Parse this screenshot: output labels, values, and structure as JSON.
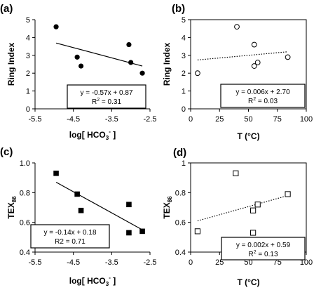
{
  "colors": {
    "ink": "#000000",
    "background": "#ffffff"
  },
  "chart_data": [
    {
      "panel": "(a)",
      "type": "scatter",
      "xlabel": "log[ HCO3- ]",
      "ylabel": "Ring Index",
      "xlim": [
        -5.5,
        -2.5
      ],
      "ylim": [
        0,
        5
      ],
      "xticks": [
        -5.5,
        -4.5,
        -3.5,
        -2.5
      ],
      "xtick_labels": [
        "-5.5",
        "-4.5",
        "-3.5",
        "-2.5"
      ],
      "yticks": [
        0,
        1,
        2,
        3,
        4,
        5
      ],
      "ytick_labels": [
        "0",
        "1",
        "2",
        "3",
        "4",
        "5"
      ],
      "marker": "filled-circle",
      "frame": "open",
      "trendline_style": "solid",
      "points": [
        [
          -4.95,
          4.6
        ],
        [
          -4.4,
          2.9
        ],
        [
          -4.3,
          2.4
        ],
        [
          -3.05,
          3.6
        ],
        [
          -3.0,
          2.6
        ],
        [
          -2.7,
          2.0
        ]
      ],
      "trendline": {
        "x": [
          -4.95,
          -2.7
        ],
        "y": [
          3.69,
          2.4
        ]
      },
      "equation": "y = -0.57x + 0.87",
      "r2": "R2 = 0.31"
    },
    {
      "panel": "(b)",
      "type": "scatter",
      "xlabel": "T (°C)",
      "ylabel": "Ring Index",
      "xlim": [
        0,
        100
      ],
      "ylim": [
        0,
        5
      ],
      "xticks": [
        0,
        25,
        50,
        75,
        100
      ],
      "xtick_labels": [
        "0",
        "25",
        "50",
        "75",
        "100"
      ],
      "yticks": [
        0,
        1,
        2,
        3,
        4,
        5
      ],
      "ytick_labels": [
        "0",
        "1",
        "2",
        "3",
        "4",
        "5"
      ],
      "marker": "open-circle",
      "frame": "box",
      "trendline_style": "dotted",
      "points": [
        [
          6,
          2.0
        ],
        [
          40,
          4.6
        ],
        [
          55,
          3.6
        ],
        [
          55,
          2.4
        ],
        [
          58,
          2.6
        ],
        [
          84,
          2.9
        ]
      ],
      "trendline": {
        "x": [
          6,
          84
        ],
        "y": [
          2.74,
          3.2
        ]
      },
      "equation": "y = 0.006x + 2.70",
      "r2": "R2 = 0.03"
    },
    {
      "panel": "(c)",
      "type": "scatter",
      "xlabel": "log[ HCO3- ]",
      "ylabel": "TEX86",
      "xlim": [
        -5.5,
        -2.5
      ],
      "ylim": [
        0.4,
        1.0
      ],
      "xticks": [
        -5.5,
        -4.5,
        -3.5,
        -2.5
      ],
      "xtick_labels": [
        "-5.5",
        "-4.5",
        "-3.5",
        "-2.5"
      ],
      "yticks": [
        0.4,
        0.6,
        0.8,
        1.0
      ],
      "ytick_labels": [
        "0.4",
        "0.6",
        "0.8",
        "1.0"
      ],
      "marker": "filled-square",
      "frame": "open",
      "trendline_style": "solid",
      "points": [
        [
          -4.95,
          0.93
        ],
        [
          -4.4,
          0.79
        ],
        [
          -4.3,
          0.68
        ],
        [
          -3.05,
          0.72
        ],
        [
          -3.05,
          0.53
        ],
        [
          -2.7,
          0.54
        ]
      ],
      "trendline": {
        "x": [
          -4.95,
          -2.7
        ],
        "y": [
          0.87,
          0.55
        ]
      },
      "equation": "y = -0.14x + 0.18",
      "r2": "R2 = 0.71"
    },
    {
      "panel": "(d)",
      "type": "scatter",
      "xlabel": "T (°C)",
      "ylabel": "TEX86",
      "xlim": [
        0,
        100
      ],
      "ylim": [
        0.4,
        1.0
      ],
      "xticks": [
        0,
        25,
        50,
        75,
        100
      ],
      "xtick_labels": [
        "0",
        "25",
        "50",
        "75",
        "100"
      ],
      "yticks": [
        0.4,
        0.6,
        0.8,
        1.0
      ],
      "ytick_labels": [
        "0.4",
        "0.6",
        "0.8",
        "1"
      ],
      "marker": "open-square",
      "frame": "box",
      "trendline_style": "dotted",
      "points": [
        [
          6,
          0.54
        ],
        [
          39,
          0.93
        ],
        [
          54,
          0.68
        ],
        [
          54,
          0.53
        ],
        [
          58,
          0.72
        ],
        [
          84,
          0.79
        ]
      ],
      "trendline": {
        "x": [
          6,
          84
        ],
        "y": [
          0.61,
          0.78
        ]
      },
      "equation": "y = 0.002x + 0.59",
      "r2": "R2 = 0.13"
    }
  ]
}
